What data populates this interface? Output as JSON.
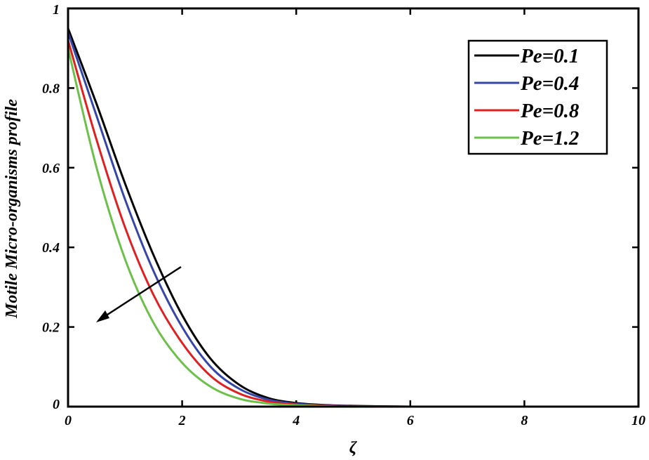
{
  "chart_data": {
    "type": "line",
    "xlabel": "ζ",
    "ylabel": "Motile Micro-organisms profile",
    "xlim": [
      0,
      10
    ],
    "ylim": [
      0,
      1
    ],
    "xticks": [
      "0",
      "2",
      "4",
      "6",
      "8",
      "10"
    ],
    "yticks": [
      "0",
      "0.2",
      "0.4",
      "0.6",
      "0.8",
      "1"
    ],
    "legend_position": "top-right",
    "annotation": "arrow indicating decreasing profile with increasing Pe",
    "series": [
      {
        "name": "Pe=0.1",
        "color": "#000000",
        "x": [
          0,
          0.5,
          1,
          1.5,
          2,
          2.5,
          3,
          3.5,
          4,
          4.5,
          5,
          6,
          7,
          8,
          10
        ],
        "y": [
          0.95,
          0.76,
          0.56,
          0.38,
          0.23,
          0.12,
          0.055,
          0.022,
          0.009,
          0.004,
          0.002,
          0,
          0,
          0,
          0
        ]
      },
      {
        "name": "Pe=0.4",
        "color": "#3446a8",
        "x": [
          0,
          0.5,
          1,
          1.5,
          2,
          2.5,
          3,
          3.5,
          4,
          4.5,
          5,
          6,
          7,
          8,
          10
        ],
        "y": [
          0.94,
          0.73,
          0.52,
          0.34,
          0.2,
          0.1,
          0.045,
          0.018,
          0.007,
          0.003,
          0.001,
          0,
          0,
          0,
          0
        ]
      },
      {
        "name": "Pe=0.8",
        "color": "#e02020",
        "x": [
          0,
          0.5,
          1,
          1.5,
          2,
          2.5,
          3,
          3.5,
          4,
          4.5,
          5,
          6,
          7,
          8,
          10
        ],
        "y": [
          0.92,
          0.67,
          0.45,
          0.28,
          0.16,
          0.077,
          0.033,
          0.013,
          0.005,
          0.002,
          0.001,
          0,
          0,
          0,
          0
        ]
      },
      {
        "name": "Pe=1.2",
        "color": "#6cc04a",
        "x": [
          0,
          0.5,
          1,
          1.5,
          2,
          2.5,
          3,
          3.5,
          4,
          4.5,
          5,
          6,
          7,
          8,
          10
        ],
        "y": [
          0.9,
          0.6,
          0.37,
          0.21,
          0.11,
          0.05,
          0.02,
          0.008,
          0.003,
          0.001,
          0,
          0,
          0,
          0,
          0
        ]
      }
    ]
  }
}
